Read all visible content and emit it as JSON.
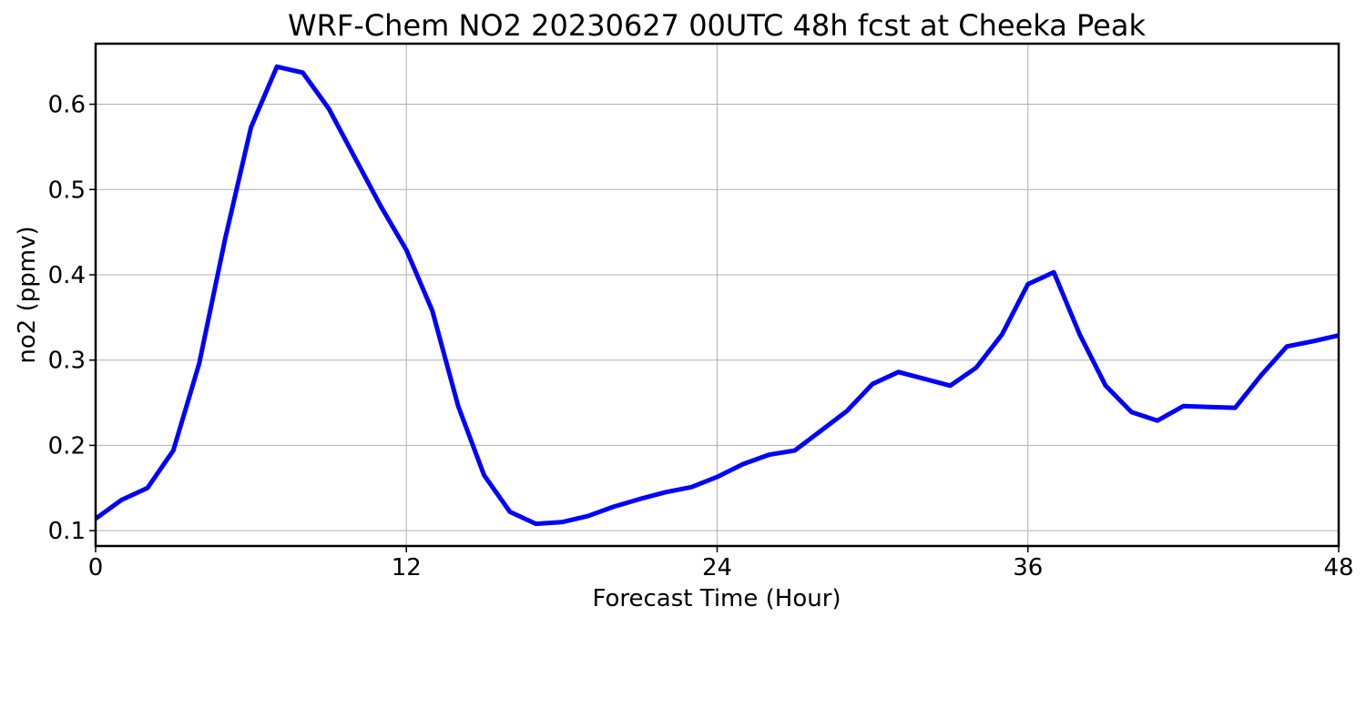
{
  "chart_data": {
    "type": "line",
    "title": "WRF-Chem NO2  20230627 00UTC 48h fcst at Cheeka Peak",
    "xlabel": "Forecast Time (Hour)",
    "ylabel": "no2  (ppmv)",
    "xlim": [
      0,
      48
    ],
    "ylim": [
      0.082,
      0.671
    ],
    "xticks": [
      0,
      12,
      24,
      36,
      48
    ],
    "yticks": [
      0.1,
      0.2,
      0.3,
      0.4,
      0.5,
      0.6
    ],
    "grid": true,
    "series": [
      {
        "color": "#0000ff",
        "x": [
          0,
          1,
          2,
          3,
          4,
          5,
          6,
          7,
          8,
          9,
          10,
          11,
          12,
          13,
          14,
          15,
          16,
          17,
          18,
          19,
          20,
          21,
          22,
          23,
          24,
          25,
          26,
          27,
          28,
          29,
          30,
          31,
          32,
          33,
          34,
          35,
          36,
          37,
          38,
          39,
          40,
          41,
          42,
          43,
          44,
          45,
          46,
          47,
          48
        ],
        "y": [
          0.114,
          0.136,
          0.15,
          0.194,
          0.296,
          0.442,
          0.573,
          0.644,
          0.637,
          0.595,
          0.538,
          0.481,
          0.429,
          0.358,
          0.246,
          0.165,
          0.122,
          0.108,
          0.11,
          0.117,
          0.128,
          0.137,
          0.145,
          0.151,
          0.163,
          0.178,
          0.189,
          0.194,
          0.217,
          0.24,
          0.272,
          0.286,
          0.278,
          0.27,
          0.291,
          0.33,
          0.389,
          0.403,
          0.33,
          0.27,
          0.239,
          0.229,
          0.246,
          0.245,
          0.244,
          0.282,
          0.316,
          0.322,
          0.329
        ]
      }
    ]
  }
}
